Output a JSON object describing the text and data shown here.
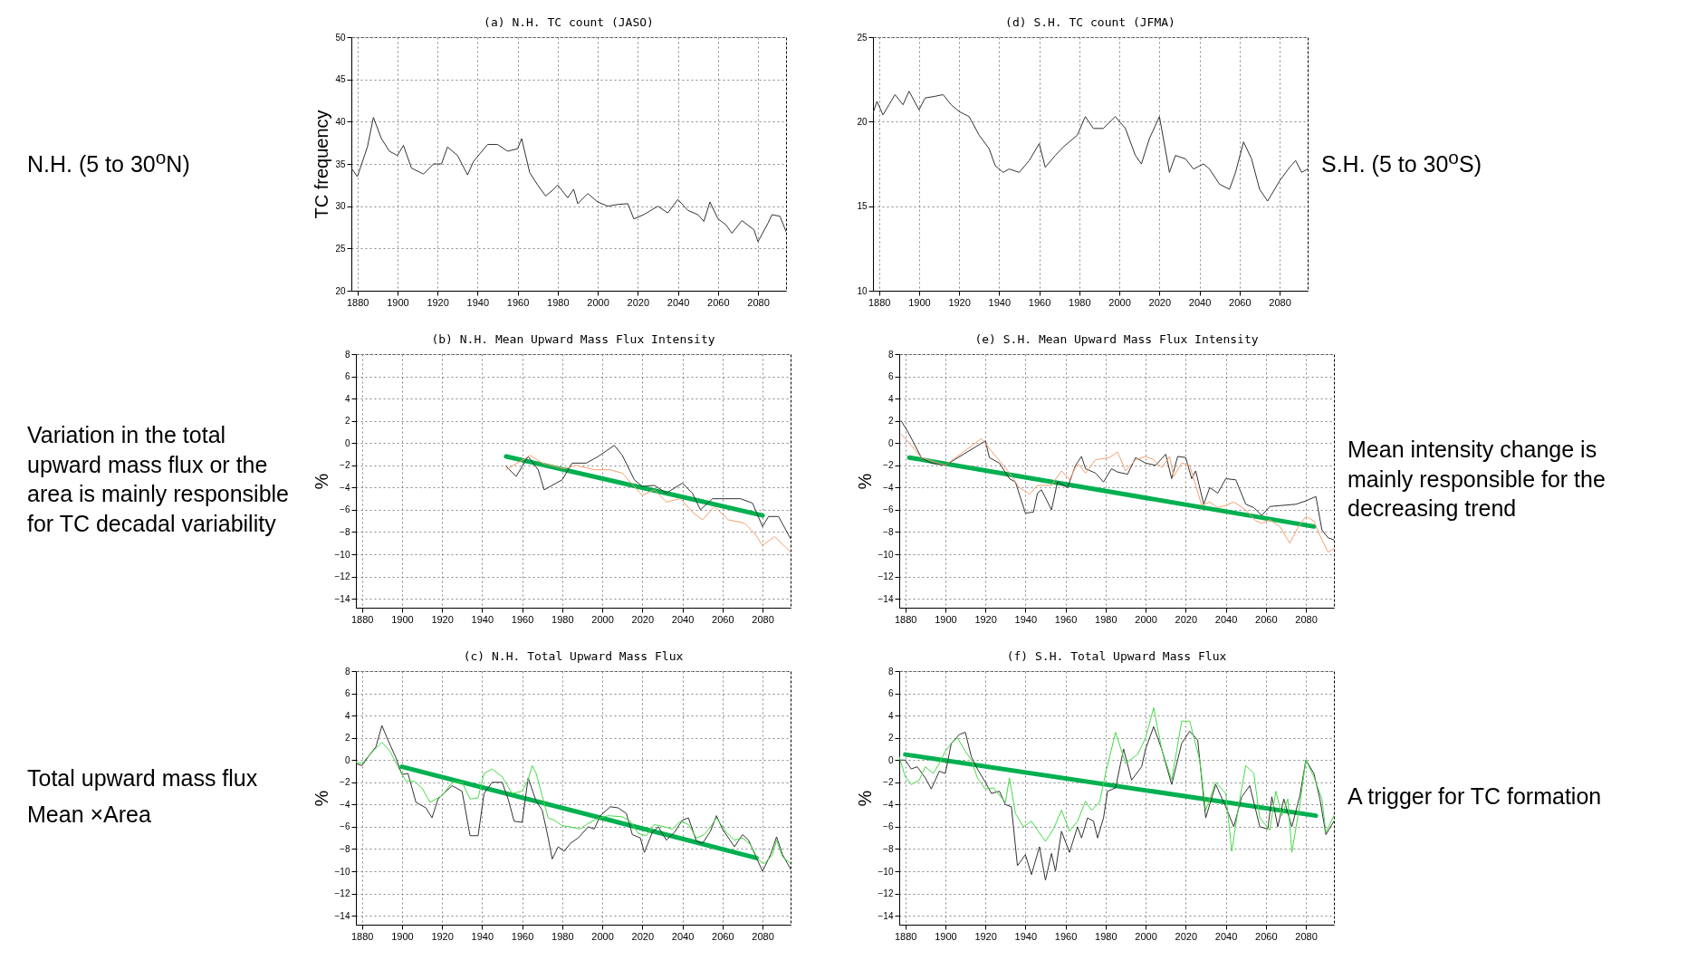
{
  "chart_data": [
    {
      "type": "line",
      "title": "(a) N.H. TC count (JASO)",
      "ylabel": "TC frequency",
      "annotations": [
        "N.H. (5 to 30$^{o}$N)"
      ],
      "xlim": [
        1877,
        2094
      ],
      "xticks": [
        1880,
        1900,
        1920,
        1940,
        1960,
        1980,
        2000,
        2020,
        2040,
        2060,
        2080
      ],
      "ylim": [
        20,
        50
      ],
      "yticks": [
        20,
        25,
        30,
        35,
        40,
        45,
        50
      ],
      "grid": true,
      "series": [
        {
          "color": "#333333",
          "x": [
            1877,
            1880,
            1885,
            1888,
            1892,
            1896,
            1900,
            1903,
            1907,
            1913,
            1918,
            1922,
            1925,
            1930,
            1935,
            1938,
            1945,
            1950,
            1955,
            1960,
            1962,
            1966,
            1970,
            1974,
            1978,
            1980,
            1985,
            1988,
            1990,
            1995,
            2000,
            2005,
            2010,
            2015,
            2018,
            2023,
            2030,
            2035,
            2040,
            2045,
            2050,
            2053,
            2056,
            2060,
            2064,
            2067,
            2072,
            2078,
            2080,
            2085,
            2087,
            2091,
            2094
          ],
          "values": [
            34.5,
            33.5,
            37,
            40.5,
            38,
            36.5,
            36,
            37.2,
            34.5,
            33.8,
            35,
            35,
            37,
            36,
            33.7,
            35.3,
            37.3,
            37.3,
            36.5,
            36.8,
            38,
            34,
            32.5,
            31.2,
            32,
            32.5,
            31,
            32,
            30.3,
            31.5,
            30.5,
            30,
            30.2,
            30.3,
            28.5,
            29,
            30,
            29.2,
            30.8,
            29.5,
            29,
            28.2,
            30.5,
            28.5,
            27.8,
            26.8,
            28.3,
            27.2,
            25.8,
            28,
            29,
            28.8,
            27
          ]
        }
      ]
    },
    {
      "type": "line",
      "title": "(d) S.H. TC count (JFMA)",
      "annotations": [
        "S.H. (5 to 30$^{o}$S)"
      ],
      "xlim": [
        1877,
        2094
      ],
      "xticks": [
        1880,
        1900,
        1920,
        1940,
        1960,
        1980,
        2000,
        2020,
        2040,
        2060,
        2080
      ],
      "ylim": [
        10,
        25
      ],
      "yticks": [
        10,
        15,
        20,
        25
      ],
      "grid": true,
      "series": [
        {
          "color": "#333333",
          "x": [
            1877,
            1879,
            1882,
            1885,
            1888,
            1892,
            1895,
            1900,
            1903,
            1908,
            1912,
            1916,
            1920,
            1925,
            1930,
            1935,
            1938,
            1942,
            1945,
            1950,
            1955,
            1960,
            1963,
            1968,
            1972,
            1975,
            1979,
            1983,
            1987,
            1992,
            1998,
            2003,
            2008,
            2011,
            2015,
            2020,
            2025,
            2028,
            2033,
            2037,
            2042,
            2045,
            2050,
            2055,
            2058,
            2062,
            2066,
            2070,
            2074,
            2080,
            2085,
            2088,
            2091,
            2094
          ],
          "values": [
            20.5,
            21.2,
            20.4,
            21,
            21.6,
            21,
            21.8,
            20.7,
            21.4,
            21.5,
            21.6,
            21,
            20.6,
            20.3,
            19.2,
            18.4,
            17.4,
            17,
            17.2,
            17,
            17.7,
            18.7,
            17.3,
            18,
            18.5,
            18.8,
            19.2,
            20.3,
            19.6,
            19.6,
            20.3,
            19.6,
            18,
            17.5,
            19,
            20.3,
            17,
            18,
            17.8,
            17.2,
            17.5,
            17.2,
            16.3,
            16,
            17,
            18.8,
            17.8,
            16,
            15.3,
            16.5,
            17.3,
            17.7,
            17,
            17.2
          ]
        }
      ]
    },
    {
      "type": "line",
      "title": "(b) N.H. Mean Upward Mass Flux Intensity",
      "ylabel": "%",
      "annotations": [
        "Variation in the total upward mass flux or the area is mainly responsible for TC decadal variability"
      ],
      "xlim": [
        1877,
        2094
      ],
      "xticks": [
        1880,
        1900,
        1920,
        1940,
        1960,
        1980,
        2000,
        2020,
        2040,
        2060,
        2080
      ],
      "ylim": [
        -14.8,
        8
      ],
      "yticks": [
        -14,
        -12,
        -10,
        -8,
        -6,
        -4,
        -2,
        0,
        2,
        4,
        6,
        8
      ],
      "grid": true,
      "series": [
        {
          "color": "#333333",
          "x": [
            1952,
            1957,
            1963,
            1968,
            1971,
            1980,
            1985,
            1992,
            1998,
            2006,
            2010,
            2016,
            2020,
            2026,
            2032,
            2040,
            2045,
            2049,
            2055,
            2061,
            2069,
            2075,
            2080,
            2083,
            2088,
            2094
          ],
          "values": [
            -2.1,
            -3.0,
            -1.2,
            -2.4,
            -4.2,
            -3.3,
            -1.8,
            -1.8,
            -1.2,
            -0.2,
            -1.1,
            -3.3,
            -3.9,
            -3.8,
            -4.5,
            -3.6,
            -4.5,
            -6.0,
            -5.0,
            -5.0,
            -5.0,
            -5.4,
            -7.5,
            -6.6,
            -6.6,
            -8.6
          ]
        },
        {
          "color": "#f4a070",
          "x": [
            1952,
            1964,
            1970,
            1981,
            1987,
            1996,
            2004,
            2010,
            2020,
            2026,
            2032,
            2039,
            2045,
            2050,
            2056,
            2063,
            2071,
            2076,
            2080,
            2086,
            2094
          ],
          "values": [
            -2.4,
            -1.1,
            -1.8,
            -2.3,
            -2.0,
            -2.4,
            -2.4,
            -2.7,
            -4.7,
            -4.2,
            -5.3,
            -5.0,
            -6.2,
            -6.9,
            -5.7,
            -6.9,
            -7.2,
            -8.1,
            -9.2,
            -8.4,
            -9.8
          ]
        },
        {
          "color": "#00b050",
          "x": [
            1952,
            2080
          ],
          "values": [
            -1.2,
            -6.5
          ]
        }
      ]
    },
    {
      "type": "line",
      "title": "(e) S.H. Mean Upward Mass Flux Intensity",
      "ylabel": "%",
      "annotations": [
        "Mean intensity change is mainly responsible for the decreasing trend"
      ],
      "xlim": [
        1877,
        2094
      ],
      "xticks": [
        1880,
        1900,
        1920,
        1940,
        1960,
        1980,
        2000,
        2020,
        2040,
        2060,
        2080
      ],
      "ylim": [
        -14.8,
        8
      ],
      "yticks": [
        -14,
        -12,
        -10,
        -8,
        -6,
        -4,
        -2,
        0,
        2,
        4,
        6,
        8
      ],
      "grid": true,
      "series": [
        {
          "color": "#333333",
          "x": [
            1878,
            1882,
            1888,
            1893,
            1900,
            1920,
            1922,
            1927,
            1932,
            1935,
            1940,
            1944,
            1946,
            1948,
            1953,
            1956,
            1961,
            1965,
            1968,
            1970,
            1975,
            1979,
            1983,
            1986,
            1991,
            1995,
            2000,
            2005,
            2010,
            2013,
            2016,
            2020,
            2023,
            2025,
            2029,
            2032,
            2036,
            2040,
            2045,
            2050,
            2054,
            2058,
            2062,
            2075,
            2080,
            2085,
            2088,
            2091,
            2094
          ],
          "values": [
            2.0,
            0.8,
            -1.3,
            -1.8,
            -2.0,
            0.2,
            -1.3,
            -1.8,
            -3.2,
            -3.5,
            -6.3,
            -6.2,
            -4.5,
            -4.2,
            -6.0,
            -3.5,
            -4.0,
            -2.0,
            -1.2,
            -2.3,
            -2.7,
            -3.5,
            -2.3,
            -2.6,
            -2.8,
            -1.3,
            -1.8,
            -2.0,
            -1.0,
            -3.2,
            -1.2,
            -1.3,
            -3.2,
            -2.5,
            -5.5,
            -4.0,
            -4.5,
            -3.2,
            -3.3,
            -5.5,
            -5.8,
            -6.5,
            -5.7,
            -5.5,
            -5.2,
            -4.8,
            -7.8,
            -8.5,
            -8.7
          ]
        },
        {
          "color": "#f4a070",
          "x": [
            1878,
            1882,
            1888,
            1900,
            1918,
            1922,
            1928,
            1932,
            1937,
            1942,
            1946,
            1953,
            1958,
            1962,
            1966,
            1970,
            1975,
            1982,
            1986,
            1990,
            1995,
            2000,
            2004,
            2008,
            2012,
            2014,
            2018,
            2022,
            2028,
            2032,
            2036,
            2040,
            2044,
            2050,
            2055,
            2058,
            2062,
            2067,
            2072,
            2076,
            2080,
            2084,
            2087,
            2091,
            2094
          ],
          "values": [
            0.8,
            0.0,
            -1.3,
            -2.0,
            0.4,
            -0.5,
            -1.8,
            -2.7,
            -4.0,
            -4.6,
            -3.8,
            -3.8,
            -2.5,
            -3.3,
            -1.8,
            -2.7,
            -1.5,
            -1.3,
            -0.8,
            -2.5,
            -1.5,
            -1.2,
            -1.5,
            -2.2,
            -1.2,
            -3.0,
            -1.8,
            -2.0,
            -5.6,
            -5.3,
            -5.8,
            -5.6,
            -5.3,
            -6.0,
            -7.0,
            -7.2,
            -6.9,
            -7.5,
            -9.0,
            -7.6,
            -6.6,
            -7.0,
            -8.3,
            -9.8,
            -9.5
          ]
        },
        {
          "color": "#00b050",
          "x": [
            1882,
            2084
          ],
          "values": [
            -1.3,
            -7.5
          ]
        }
      ]
    },
    {
      "type": "line",
      "title": "(c) N.H. Total Upward Mass Flux",
      "ylabel": "%",
      "annotations": [
        "Total upward mass flux",
        "Mean ×Area"
      ],
      "xlim": [
        1877,
        2094
      ],
      "xticks": [
        1880,
        1900,
        1920,
        1940,
        1960,
        1980,
        2000,
        2020,
        2040,
        2060,
        2080
      ],
      "ylim": [
        -14.8,
        8
      ],
      "yticks": [
        -14,
        -12,
        -10,
        -8,
        -6,
        -4,
        -2,
        0,
        2,
        4,
        6,
        8
      ],
      "grid": true,
      "series": [
        {
          "color": "#333333",
          "x": [
            1877,
            1880,
            1884,
            1887,
            1890,
            1893,
            1897,
            1900,
            1903,
            1907,
            1912,
            1915,
            1918,
            1925,
            1930,
            1934,
            1938,
            1941,
            1945,
            1950,
            1953,
            1956,
            1960,
            1963,
            1967,
            1970,
            1973,
            1975,
            1978,
            1981,
            1984,
            1988,
            1993,
            1996,
            1999,
            2004,
            2008,
            2012,
            2015,
            2019,
            2021,
            2025,
            2028,
            2032,
            2036,
            2040,
            2043,
            2047,
            2050,
            2054,
            2057,
            2060,
            2066,
            2070,
            2073,
            2077,
            2080,
            2084,
            2087,
            2090,
            2094
          ],
          "values": [
            -0.3,
            -0.5,
            0.5,
            1.2,
            3.1,
            1.8,
            0.2,
            -1.3,
            -1.2,
            -3.8,
            -4.3,
            -5.2,
            -3.5,
            -2.3,
            -2.8,
            -6.8,
            -6.8,
            -3.0,
            -2.0,
            -2.0,
            -3.5,
            -5.5,
            -5.6,
            -1.6,
            -3.7,
            -4.5,
            -7.0,
            -8.9,
            -7.8,
            -8.2,
            -7.5,
            -7.0,
            -6.0,
            -6.2,
            -5.0,
            -4.2,
            -4.3,
            -4.8,
            -6.7,
            -7.0,
            -8.3,
            -6.5,
            -6.0,
            -7.2,
            -6.5,
            -5.4,
            -5.2,
            -7.3,
            -7.5,
            -6.4,
            -5.0,
            -6.2,
            -7.8,
            -6.7,
            -7.2,
            -8.8,
            -10.0,
            -8.5,
            -6.9,
            -8.5,
            -9.8
          ]
        },
        {
          "color": "#44dd44",
          "x": [
            1877,
            1880,
            1884,
            1890,
            1894,
            1898,
            1902,
            1906,
            1910,
            1914,
            1920,
            1925,
            1930,
            1934,
            1938,
            1941,
            1945,
            1950,
            1955,
            1960,
            1963,
            1965,
            1967,
            1970,
            1973,
            1976,
            1980,
            1984,
            1989,
            1992,
            1997,
            2003,
            2010,
            2014,
            2018,
            2022,
            2026,
            2031,
            2035,
            2039,
            2043,
            2047,
            2051,
            2054,
            2057,
            2062,
            2066,
            2070,
            2074,
            2078,
            2081,
            2085,
            2087,
            2090,
            2094
          ],
          "values": [
            -0.2,
            -0.3,
            0.5,
            1.6,
            0.8,
            -0.6,
            -1.9,
            -1.9,
            -2.5,
            -3.8,
            -3.2,
            -2.0,
            -2.0,
            -3.5,
            -3.4,
            -1.2,
            -0.8,
            -1.5,
            -3.0,
            -2.8,
            -1.8,
            -0.5,
            -1.2,
            -3.2,
            -5.2,
            -5.4,
            -5.9,
            -6.0,
            -6.2,
            -5.8,
            -5.3,
            -5.0,
            -5.1,
            -5.5,
            -6.6,
            -6.8,
            -5.8,
            -6.0,
            -6.2,
            -5.5,
            -5.8,
            -7.0,
            -6.7,
            -6.0,
            -5.2,
            -6.5,
            -7.2,
            -7.0,
            -7.6,
            -9.0,
            -9.3,
            -8.5,
            -7.2,
            -8.7,
            -9.3
          ]
        },
        {
          "color": "#00b050",
          "x": [
            1900,
            2077
          ],
          "values": [
            -0.6,
            -8.8
          ]
        }
      ]
    },
    {
      "type": "line",
      "title": "(f) S.H. Total Upward Mass Flux",
      "ylabel": "%",
      "annotations": [
        "A trigger for TC formation"
      ],
      "xlim": [
        1877,
        2094
      ],
      "xticks": [
        1880,
        1900,
        1920,
        1940,
        1960,
        1980,
        2000,
        2020,
        2040,
        2060,
        2080
      ],
      "ylim": [
        -14.8,
        8
      ],
      "yticks": [
        -14,
        -12,
        -10,
        -8,
        -6,
        -4,
        -2,
        0,
        2,
        4,
        6,
        8
      ],
      "grid": true,
      "series": [
        {
          "color": "#333333",
          "x": [
            1877,
            1880,
            1883,
            1886,
            1890,
            1893,
            1897,
            1900,
            1903,
            1907,
            1910,
            1913,
            1916,
            1920,
            1923,
            1927,
            1930,
            1933,
            1936,
            1940,
            1943,
            1947,
            1950,
            1953,
            1955,
            1958,
            1962,
            1966,
            1968,
            1971,
            1974,
            1976,
            1979,
            1981,
            1985,
            1989,
            1993,
            1998,
            2000,
            2004,
            2008,
            2013,
            2018,
            2022,
            2026,
            2030,
            2035,
            2040,
            2044,
            2048,
            2052,
            2057,
            2061,
            2063,
            2066,
            2069,
            2073,
            2077,
            2080,
            2084,
            2087,
            2090,
            2094
          ],
          "values": [
            0.0,
            0.0,
            -0.8,
            -0.6,
            -1.6,
            -2.6,
            -1.0,
            -1.2,
            1.5,
            2.3,
            2.5,
            0.3,
            -0.8,
            -2.0,
            -3.0,
            -2.8,
            -4.0,
            -4.2,
            -9.5,
            -8.5,
            -10.3,
            -7.8,
            -10.8,
            -8.4,
            -10.0,
            -6.4,
            -8.3,
            -6.0,
            -7.0,
            -5.2,
            -5.5,
            -7.0,
            -5.2,
            -2.8,
            -2.5,
            1.0,
            -1.8,
            -0.6,
            1.0,
            3.0,
            1.0,
            -2.2,
            1.5,
            2.6,
            1.8,
            -5.2,
            -2.2,
            -4.2,
            -6.0,
            -3.3,
            -2.3,
            -6.0,
            -6.2,
            -3.3,
            -6.0,
            -3.5,
            -6.0,
            -3.2,
            0.0,
            -1.2,
            -3.5,
            -6.7,
            -5.5
          ]
        },
        {
          "color": "#44dd44",
          "x": [
            1877,
            1880,
            1883,
            1887,
            1890,
            1894,
            1897,
            1900,
            1903,
            1906,
            1910,
            1913,
            1916,
            1920,
            1924,
            1930,
            1932,
            1935,
            1939,
            1943,
            1946,
            1950,
            1954,
            1958,
            1962,
            1966,
            1970,
            1973,
            1977,
            1980,
            1985,
            1990,
            1996,
            2000,
            2004,
            2008,
            2013,
            2018,
            2022,
            2027,
            2030,
            2035,
            2040,
            2043,
            2047,
            2050,
            2054,
            2057,
            2062,
            2065,
            2068,
            2071,
            2073,
            2077,
            2080,
            2084,
            2088,
            2090,
            2094
          ],
          "values": [
            0.3,
            -1.5,
            -2.2,
            -1.8,
            -0.6,
            -1.2,
            -0.3,
            0.8,
            1.5,
            2.0,
            0.8,
            0.0,
            -1.6,
            -2.6,
            -2.5,
            -3.8,
            -1.6,
            -4.8,
            -6.0,
            -5.5,
            -6.3,
            -7.3,
            -6.2,
            -4.5,
            -6.4,
            -5.5,
            -3.7,
            -4.5,
            -3.8,
            -1.2,
            2.5,
            -0.3,
            0.5,
            2.0,
            4.7,
            1.0,
            -1.8,
            3.5,
            3.5,
            0.0,
            -4.5,
            -2.0,
            -3.0,
            -8.2,
            -3.5,
            -0.5,
            -1.2,
            -5.2,
            -6.3,
            -2.8,
            -5.0,
            -3.5,
            -8.3,
            -4.0,
            0.0,
            -1.5,
            -3.5,
            -6.5,
            -5.0
          ]
        },
        {
          "color": "#00b050",
          "x": [
            1880,
            2085
          ],
          "values": [
            0.5,
            -5.0
          ]
        }
      ]
    }
  ]
}
